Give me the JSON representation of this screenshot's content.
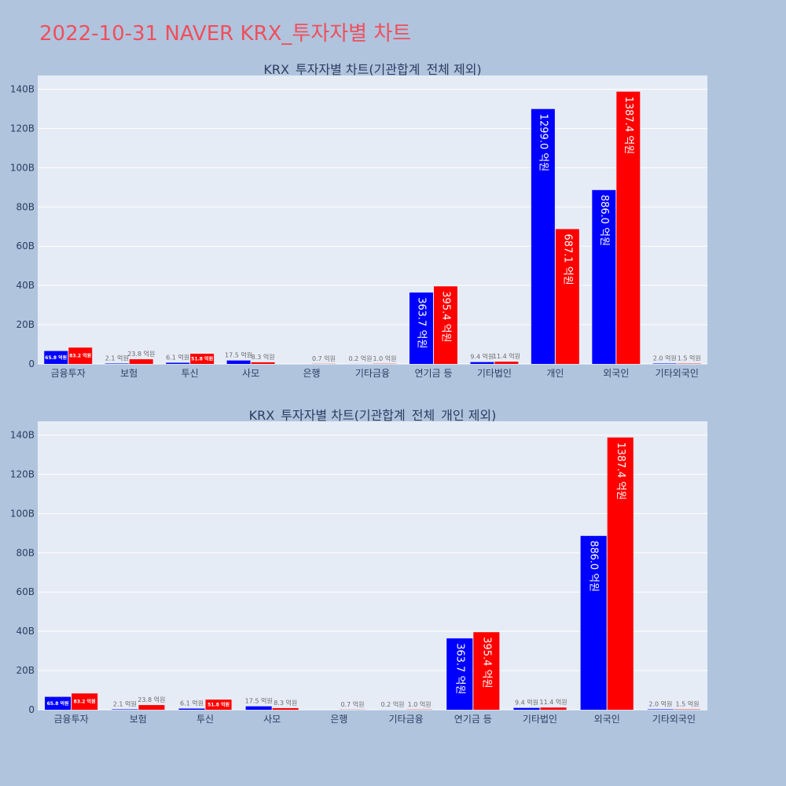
{
  "page_title": "2022-10-31 NAVER KRX_투자자별 차트",
  "chart_data": [
    {
      "type": "bar",
      "title": "KRX_투자자별 차트(기관합계_전체 제외)",
      "categories": [
        "금융투자",
        "보험",
        "투신",
        "사모",
        "은행",
        "기타금융",
        "연기금 등",
        "기타법인",
        "개인",
        "외국인",
        "기타외국인"
      ],
      "ylim": [
        0,
        147
      ],
      "yticks": [
        0,
        20,
        40,
        60,
        80,
        100,
        120,
        140
      ],
      "ytick_labels": [
        "0",
        "20B",
        "40B",
        "60B",
        "80B",
        "100B",
        "120B",
        "140B"
      ],
      "grid": true,
      "series": [
        {
          "color": "#0000ff",
          "values": [
            6.58,
            0.21,
            0.61,
            1.75,
            0,
            0.02,
            36.37,
            0.94,
            129.9,
            88.6,
            0.2
          ],
          "labels": [
            "65.8 억원",
            "2.1 억원",
            "6.1 억원",
            "17.5 억원",
            "",
            "0.2 억원",
            "363.7 억원",
            "9.4 억원",
            "1299.0 억원",
            "886.0 억원",
            "2.0 억원"
          ]
        },
        {
          "color": "#ff0000",
          "values": [
            8.32,
            2.38,
            5.18,
            0.83,
            0.07,
            0.1,
            39.54,
            1.14,
            68.71,
            138.74,
            0.15
          ],
          "labels": [
            "83.2 억원",
            "23.8 억원",
            "51.8 억원",
            "8.3 억원",
            "0.7 억원",
            "1.0 억원",
            "395.4 억원",
            "11.4 억원",
            "687.1 억원",
            "1387.4 억원",
            "1.5 억원"
          ]
        }
      ]
    },
    {
      "type": "bar",
      "title": "KRX_투자자별 차트(기관합계_전체_개인 제외)",
      "categories": [
        "금융투자",
        "보험",
        "투신",
        "사모",
        "은행",
        "기타금융",
        "연기금 등",
        "기타법인",
        "외국인",
        "기타외국인"
      ],
      "ylim": [
        0,
        147
      ],
      "yticks": [
        0,
        20,
        40,
        60,
        80,
        100,
        120,
        140
      ],
      "ytick_labels": [
        "0",
        "20B",
        "40B",
        "60B",
        "80B",
        "100B",
        "120B",
        "140B"
      ],
      "grid": true,
      "series": [
        {
          "color": "#0000ff",
          "values": [
            6.58,
            0.21,
            0.61,
            1.75,
            0,
            0.02,
            36.37,
            0.94,
            88.6,
            0.2
          ],
          "labels": [
            "65.8 억원",
            "2.1 억원",
            "6.1 억원",
            "17.5 억원",
            "",
            "0.2 억원",
            "363.7 억원",
            "9.4 억원",
            "886.0 억원",
            "2.0 억원"
          ]
        },
        {
          "color": "#ff0000",
          "values": [
            8.32,
            2.38,
            5.18,
            0.83,
            0.07,
            0.1,
            39.54,
            1.14,
            138.74,
            0.15
          ],
          "labels": [
            "83.2 억원",
            "23.8 억원",
            "51.8 억원",
            "8.3 억원",
            "0.7 억원",
            "1.0 억원",
            "395.4 억원",
            "11.4 억원",
            "1387.4 억원",
            "1.5 억원"
          ]
        }
      ]
    }
  ]
}
